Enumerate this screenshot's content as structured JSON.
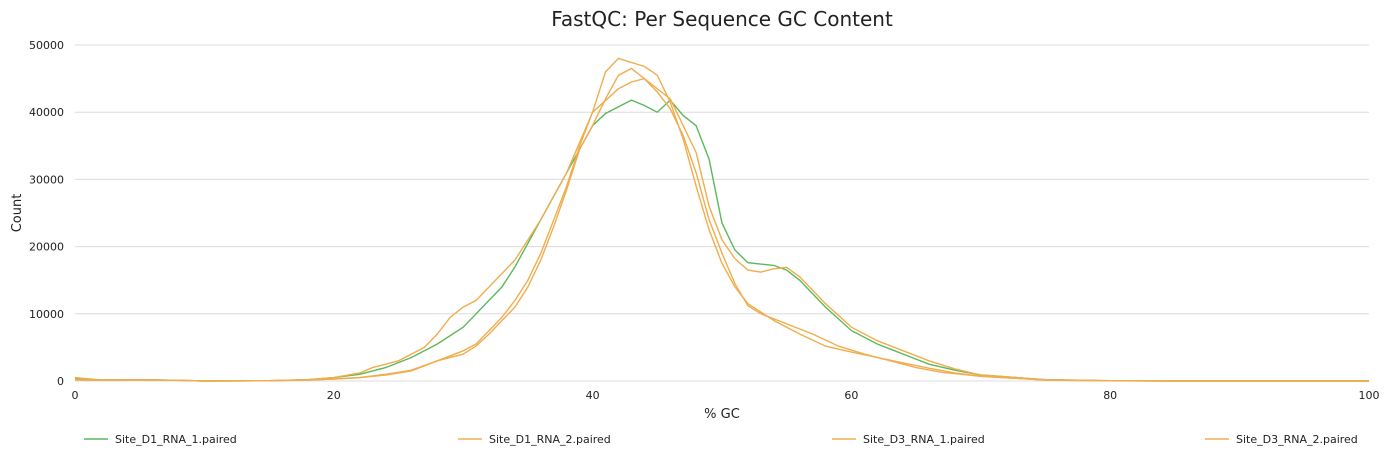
{
  "chart_data": {
    "type": "line",
    "title": "FastQC: Per Sequence GC Content",
    "xlabel": "% GC",
    "ylabel": "Count",
    "xlim": [
      0,
      100
    ],
    "ylim": [
      0,
      50000
    ],
    "xticks": [
      0,
      20,
      40,
      60,
      80,
      100
    ],
    "yticks": [
      0,
      10000,
      20000,
      30000,
      40000,
      50000
    ],
    "grid": "horizontal",
    "legend_position": "bottom",
    "series": [
      {
        "name": "Site_D1_RNA_1.paired",
        "color": "#5cb85c",
        "points": [
          [
            0,
            300
          ],
          [
            2,
            150
          ],
          [
            5,
            200
          ],
          [
            8,
            100
          ],
          [
            10,
            0
          ],
          [
            15,
            50
          ],
          [
            18,
            200
          ],
          [
            20,
            500
          ],
          [
            22,
            1000
          ],
          [
            24,
            2000
          ],
          [
            26,
            3500
          ],
          [
            28,
            5500
          ],
          [
            30,
            8000
          ],
          [
            31,
            10000
          ],
          [
            33,
            14000
          ],
          [
            34,
            17000
          ],
          [
            36,
            24000
          ],
          [
            38,
            31000
          ],
          [
            40,
            38000
          ],
          [
            41,
            39800
          ],
          [
            43,
            41800
          ],
          [
            44,
            41000
          ],
          [
            45,
            40000
          ],
          [
            46,
            41800
          ],
          [
            47,
            39500
          ],
          [
            48,
            38000
          ],
          [
            49,
            33000
          ],
          [
            50,
            23500
          ],
          [
            51,
            19500
          ],
          [
            52,
            17600
          ],
          [
            54,
            17200
          ],
          [
            55,
            16500
          ],
          [
            56,
            15000
          ],
          [
            58,
            11000
          ],
          [
            60,
            7500
          ],
          [
            62,
            5500
          ],
          [
            64,
            4000
          ],
          [
            66,
            2500
          ],
          [
            68,
            1600
          ],
          [
            70,
            900
          ],
          [
            75,
            200
          ],
          [
            80,
            50
          ],
          [
            85,
            0
          ],
          [
            100,
            0
          ]
        ]
      },
      {
        "name": "Site_D1_RNA_2.paired",
        "color": "#f0ad4e",
        "points": [
          [
            0,
            500
          ],
          [
            2,
            150
          ],
          [
            5,
            200
          ],
          [
            8,
            100
          ],
          [
            10,
            0
          ],
          [
            15,
            50
          ],
          [
            18,
            200
          ],
          [
            20,
            500
          ],
          [
            22,
            1200
          ],
          [
            23,
            2000
          ],
          [
            25,
            3000
          ],
          [
            27,
            5000
          ],
          [
            28,
            7000
          ],
          [
            29,
            9500
          ],
          [
            30,
            11000
          ],
          [
            31,
            12000
          ],
          [
            32,
            14000
          ],
          [
            34,
            18000
          ],
          [
            36,
            24000
          ],
          [
            38,
            31000
          ],
          [
            40,
            40000
          ],
          [
            42,
            43500
          ],
          [
            43,
            44500
          ],
          [
            44,
            45000
          ],
          [
            46,
            42000
          ],
          [
            47,
            38000
          ],
          [
            48,
            34000
          ],
          [
            49,
            26000
          ],
          [
            50,
            21000
          ],
          [
            51,
            18200
          ],
          [
            52,
            16500
          ],
          [
            53,
            16200
          ],
          [
            54,
            16700
          ],
          [
            55,
            16900
          ],
          [
            56,
            15500
          ],
          [
            58,
            11500
          ],
          [
            60,
            8000
          ],
          [
            62,
            6000
          ],
          [
            64,
            4500
          ],
          [
            66,
            3000
          ],
          [
            68,
            1800
          ],
          [
            70,
            900
          ],
          [
            75,
            200
          ],
          [
            80,
            50
          ],
          [
            85,
            0
          ],
          [
            100,
            0
          ]
        ]
      },
      {
        "name": "Site_D3_RNA_1.paired",
        "color": "#f0ad4e",
        "points": [
          [
            0,
            200
          ],
          [
            2,
            100
          ],
          [
            5,
            150
          ],
          [
            8,
            100
          ],
          [
            10,
            0
          ],
          [
            15,
            50
          ],
          [
            18,
            150
          ],
          [
            20,
            300
          ],
          [
            22,
            500
          ],
          [
            24,
            900
          ],
          [
            26,
            1500
          ],
          [
            28,
            3000
          ],
          [
            30,
            4500
          ],
          [
            31,
            5500
          ],
          [
            32,
            7500
          ],
          [
            33,
            9500
          ],
          [
            34,
            12000
          ],
          [
            35,
            15000
          ],
          [
            36,
            19000
          ],
          [
            37,
            24000
          ],
          [
            38,
            29000
          ],
          [
            39,
            35000
          ],
          [
            40,
            40000
          ],
          [
            41,
            46000
          ],
          [
            42,
            48000
          ],
          [
            44,
            46800
          ],
          [
            45,
            45500
          ],
          [
            46,
            41500
          ],
          [
            47,
            36000
          ],
          [
            48,
            29000
          ],
          [
            49,
            22500
          ],
          [
            50,
            17500
          ],
          [
            51,
            14000
          ],
          [
            52,
            11500
          ],
          [
            54,
            9000
          ],
          [
            56,
            7000
          ],
          [
            58,
            5200
          ],
          [
            60,
            4300
          ],
          [
            62,
            3500
          ],
          [
            64,
            2700
          ],
          [
            66,
            1900
          ],
          [
            68,
            1200
          ],
          [
            70,
            700
          ],
          [
            75,
            150
          ],
          [
            80,
            30
          ],
          [
            85,
            0
          ],
          [
            100,
            0
          ]
        ]
      },
      {
        "name": "Site_D3_RNA_2.paired",
        "color": "#f0ad4e",
        "points": [
          [
            0,
            150
          ],
          [
            2,
            100
          ],
          [
            5,
            150
          ],
          [
            8,
            100
          ],
          [
            10,
            0
          ],
          [
            15,
            50
          ],
          [
            18,
            150
          ],
          [
            20,
            300
          ],
          [
            22,
            500
          ],
          [
            24,
            1000
          ],
          [
            26,
            1600
          ],
          [
            28,
            3000
          ],
          [
            30,
            4000
          ],
          [
            31,
            5200
          ],
          [
            32,
            7000
          ],
          [
            33,
            9000
          ],
          [
            34,
            11000
          ],
          [
            35,
            14000
          ],
          [
            36,
            18000
          ],
          [
            37,
            23000
          ],
          [
            38,
            28500
          ],
          [
            39,
            34500
          ],
          [
            40,
            38000
          ],
          [
            41,
            42000
          ],
          [
            42,
            45500
          ],
          [
            43,
            46500
          ],
          [
            44,
            45000
          ],
          [
            45,
            43000
          ],
          [
            46,
            40500
          ],
          [
            47,
            36500
          ],
          [
            48,
            31000
          ],
          [
            49,
            24000
          ],
          [
            50,
            19000
          ],
          [
            51,
            14500
          ],
          [
            52,
            11200
          ],
          [
            53,
            10000
          ],
          [
            55,
            8500
          ],
          [
            57,
            7000
          ],
          [
            59,
            5200
          ],
          [
            61,
            4000
          ],
          [
            63,
            3000
          ],
          [
            65,
            2000
          ],
          [
            67,
            1300
          ],
          [
            70,
            700
          ],
          [
            75,
            150
          ],
          [
            80,
            30
          ],
          [
            85,
            0
          ],
          [
            100,
            0
          ]
        ]
      }
    ]
  }
}
